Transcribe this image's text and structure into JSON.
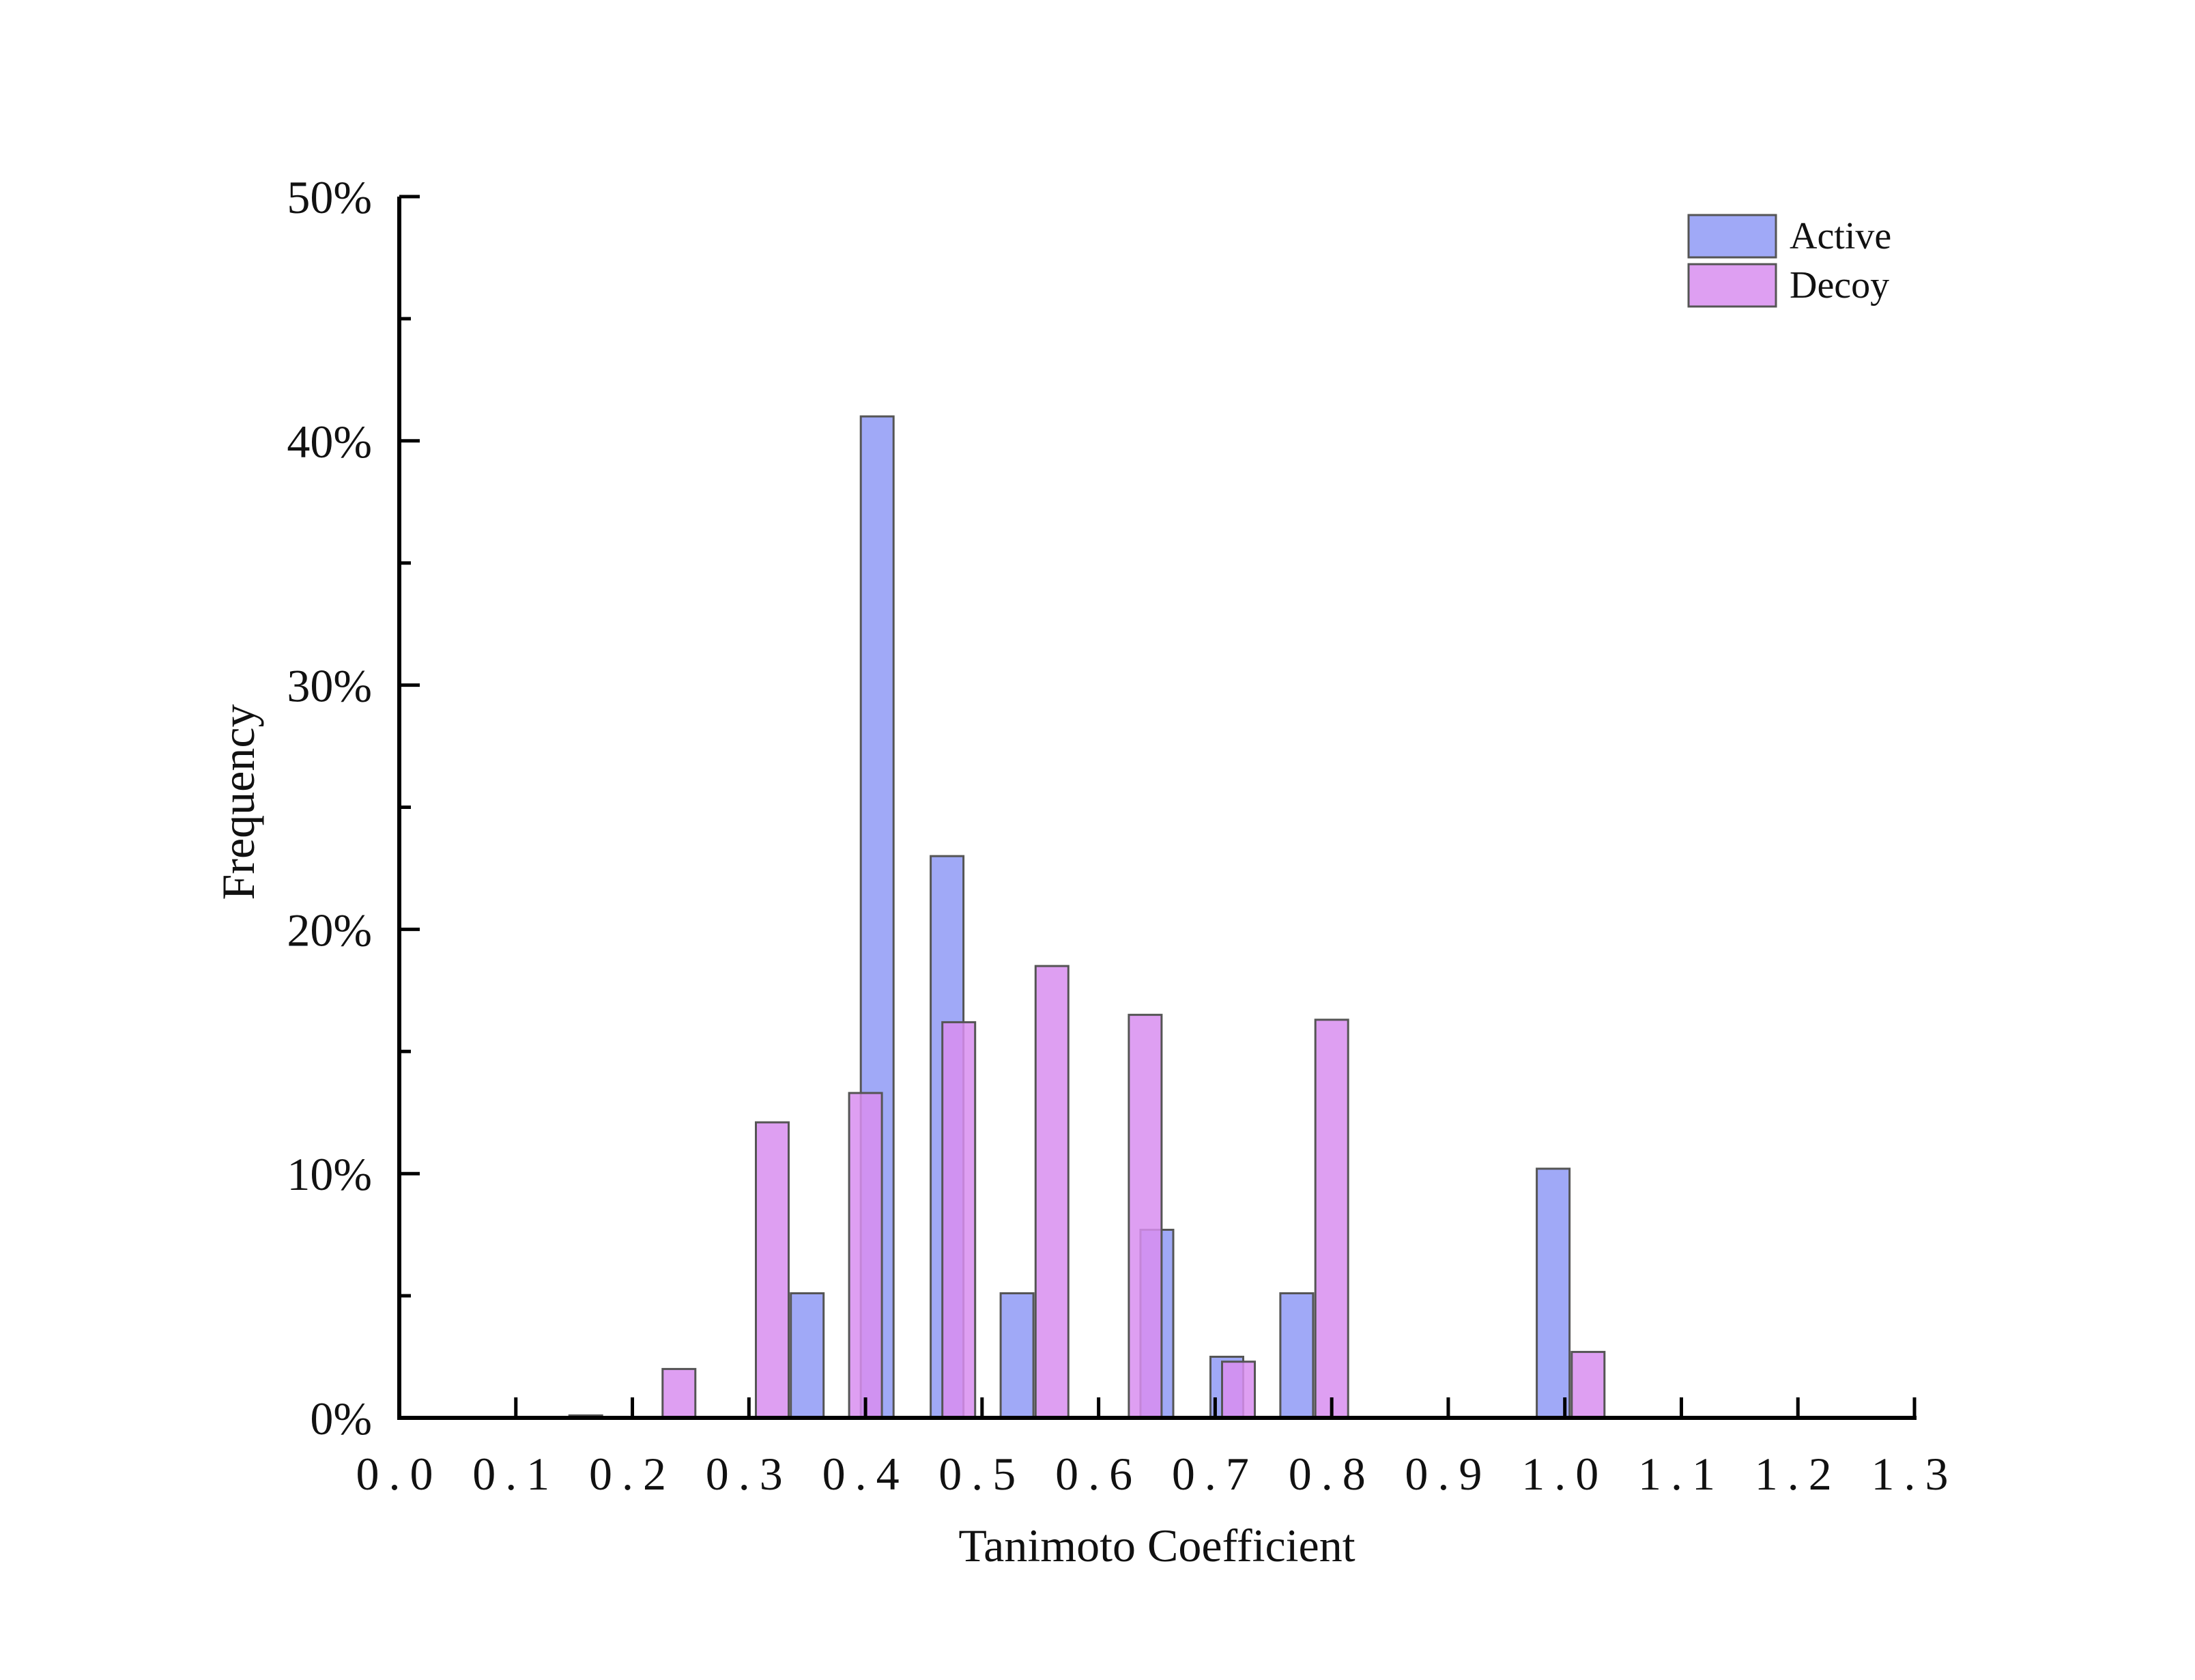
{
  "chart_data": {
    "type": "bar",
    "xlabel": "Tanimoto Coefficient",
    "ylabel": "Frequency",
    "xlim": [
      0.0,
      1.3
    ],
    "ylim": [
      0,
      50
    ],
    "y_unit": "%",
    "x_ticks": [
      "0.0",
      "0.1",
      "0.2",
      "0.3",
      "0.4",
      "0.5",
      "0.6",
      "0.7",
      "0.8",
      "0.9",
      "1.0",
      "1.1",
      "1.2",
      "1.3"
    ],
    "y_ticks": [
      "0%",
      "10%",
      "20%",
      "30%",
      "40%",
      "50%"
    ],
    "legend_position": "top-right",
    "series": [
      {
        "name": "Active",
        "color": "#8f9af6",
        "bars": [
          {
            "x": 0.35,
            "y": 5.1
          },
          {
            "x": 0.41,
            "y": 41.0
          },
          {
            "x": 0.47,
            "y": 23.0
          },
          {
            "x": 0.53,
            "y": 5.1
          },
          {
            "x": 0.65,
            "y": 7.7
          },
          {
            "x": 0.71,
            "y": 2.5
          },
          {
            "x": 0.77,
            "y": 5.1
          },
          {
            "x": 0.99,
            "y": 10.2
          }
        ]
      },
      {
        "name": "Decoy",
        "color": "#d88ef0",
        "bars": [
          {
            "x": 0.16,
            "y": 0.1
          },
          {
            "x": 0.24,
            "y": 2.0
          },
          {
            "x": 0.32,
            "y": 12.1
          },
          {
            "x": 0.4,
            "y": 13.3
          },
          {
            "x": 0.48,
            "y": 16.2
          },
          {
            "x": 0.56,
            "y": 18.5
          },
          {
            "x": 0.64,
            "y": 16.5
          },
          {
            "x": 0.72,
            "y": 2.3
          },
          {
            "x": 0.8,
            "y": 16.3
          },
          {
            "x": 1.02,
            "y": 2.7
          }
        ]
      }
    ]
  }
}
